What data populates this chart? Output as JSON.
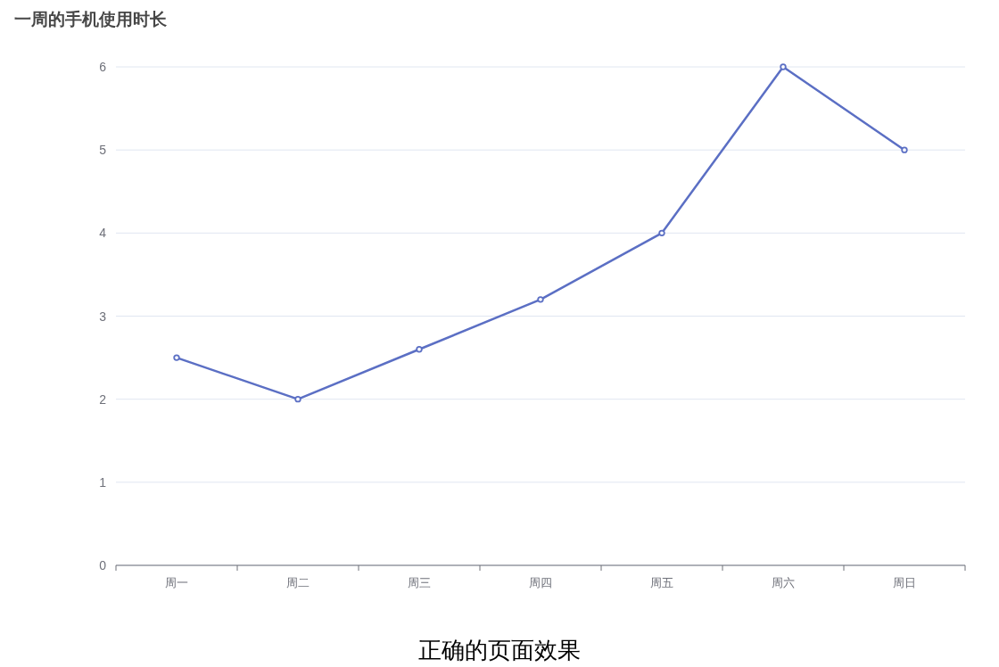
{
  "chart_data": {
    "type": "line",
    "title": "一周的手机使用时长",
    "categories": [
      "周一",
      "周二",
      "周三",
      "周四",
      "周五",
      "周六",
      "周日"
    ],
    "series": [
      {
        "color": "#5b6fc4",
        "values": [
          2.5,
          2,
          2.6,
          3.2,
          4,
          6,
          5
        ]
      }
    ],
    "ylim": [
      0,
      6
    ],
    "yticks": [
      0,
      1,
      2,
      3,
      4,
      5,
      6
    ],
    "grid": "y",
    "marker": "circle",
    "annotations": [
      "正确的页面效果"
    ]
  }
}
